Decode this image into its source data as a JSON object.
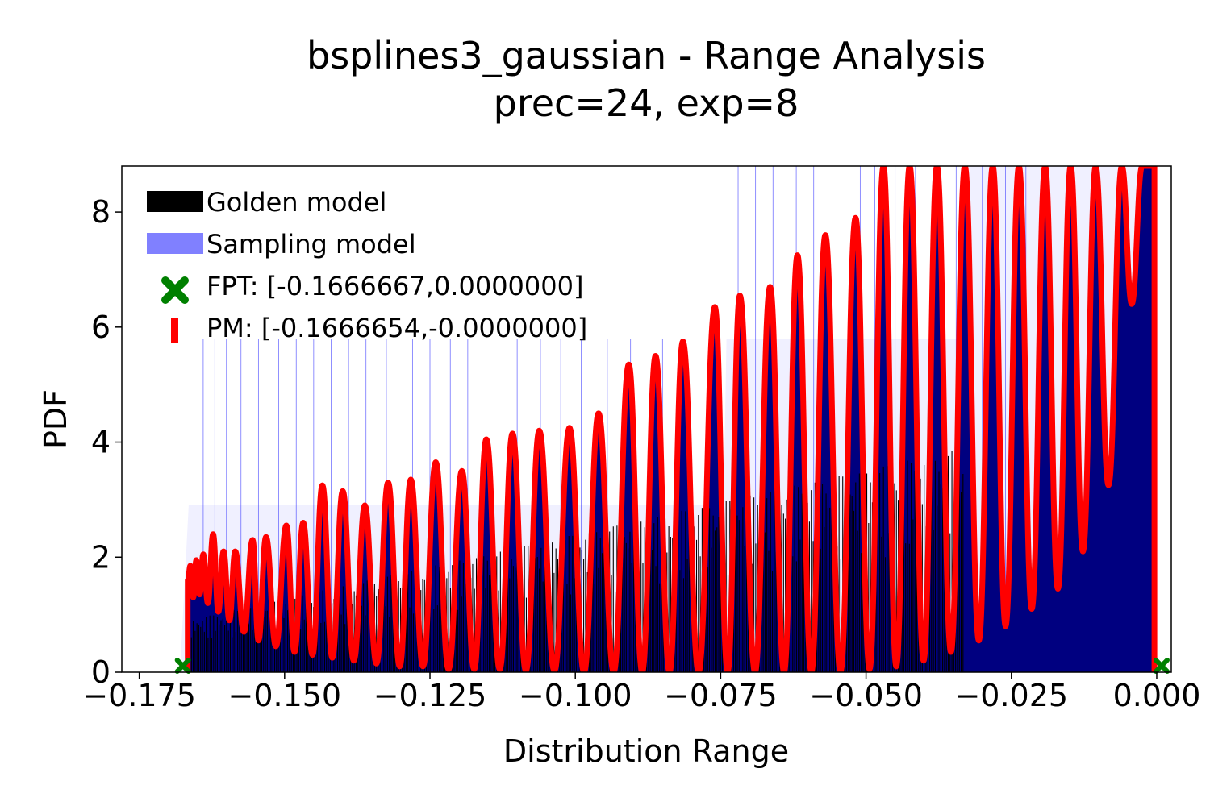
{
  "chart_data": {
    "type": "area",
    "title_line1": "bsplines3_gaussian - Range Analysis",
    "title_line2": "prec=24, exp=8",
    "xlabel": "Distribution Range",
    "ylabel": "PDF",
    "xlim": [
      -0.178,
      0.0025
    ],
    "ylim": [
      0,
      8.8
    ],
    "grid": false,
    "legend_placement": "top-left",
    "x_ticks": [
      -0.175,
      -0.15,
      -0.125,
      -0.1,
      -0.075,
      -0.05,
      -0.025,
      0.0
    ],
    "x_tick_labels": [
      "−0.175",
      "−0.150",
      "−0.125",
      "−0.100",
      "−0.075",
      "−0.050",
      "−0.025",
      "0.000"
    ],
    "y_ticks": [
      0,
      2,
      4,
      6,
      8
    ],
    "y_tick_labels": [
      "0",
      "2",
      "4",
      "6",
      "8"
    ],
    "legend": [
      {
        "label": "Golden model",
        "color": "#000000",
        "marker": "patch"
      },
      {
        "label": "Sampling model",
        "color": "#8080ff",
        "marker": "patch"
      },
      {
        "label": "FPT: [-0.1666667,0.0000000]",
        "color": "#008000",
        "marker": "x"
      },
      {
        "label": "PM: [-0.1666654,-0.0000000]",
        "color": "#ff0000",
        "marker": "line"
      }
    ],
    "colors": {
      "golden": "#000000",
      "sampling": "#0000ff",
      "fill": "#000080",
      "pm": "#ff0000",
      "fpt": "#008000"
    },
    "fpt_range": [
      -0.1666667,
      0.0
    ],
    "pm_range": [
      -0.1666654,
      -0.0
    ],
    "pm_peaks": [
      {
        "x": -0.1662,
        "y": 1.85
      },
      {
        "x": -0.1652,
        "y": 1.95
      },
      {
        "x": -0.164,
        "y": 2.05
      },
      {
        "x": -0.1623,
        "y": 2.4
      },
      {
        "x": -0.1605,
        "y": 2.1
      },
      {
        "x": -0.1585,
        "y": 2.1
      },
      {
        "x": -0.1555,
        "y": 2.3
      },
      {
        "x": -0.1532,
        "y": 2.35
      },
      {
        "x": -0.1497,
        "y": 2.55
      },
      {
        "x": -0.1468,
        "y": 2.6
      },
      {
        "x": -0.1435,
        "y": 3.25
      },
      {
        "x": -0.14,
        "y": 3.15
      },
      {
        "x": -0.1362,
        "y": 2.9
      },
      {
        "x": -0.1322,
        "y": 3.3
      },
      {
        "x": -0.1283,
        "y": 3.35
      },
      {
        "x": -0.124,
        "y": 3.65
      },
      {
        "x": -0.1195,
        "y": 3.5
      },
      {
        "x": -0.1153,
        "y": 4.05
      },
      {
        "x": -0.1108,
        "y": 4.15
      },
      {
        "x": -0.1062,
        "y": 4.2
      },
      {
        "x": -0.101,
        "y": 4.25
      },
      {
        "x": -0.096,
        "y": 4.5
      },
      {
        "x": -0.0908,
        "y": 5.35
      },
      {
        "x": -0.0862,
        "y": 5.5
      },
      {
        "x": -0.0815,
        "y": 5.75
      },
      {
        "x": -0.076,
        "y": 6.35
      },
      {
        "x": -0.0717,
        "y": 6.55
      },
      {
        "x": -0.0665,
        "y": 6.7
      },
      {
        "x": -0.0618,
        "y": 7.25
      },
      {
        "x": -0.057,
        "y": 7.6
      },
      {
        "x": -0.0518,
        "y": 7.9
      },
      {
        "x": -0.047,
        "y": 8.8
      },
      {
        "x": -0.0425,
        "y": 8.8
      },
      {
        "x": -0.0378,
        "y": 8.8
      },
      {
        "x": -0.033,
        "y": 8.8
      },
      {
        "x": -0.0282,
        "y": 8.8
      },
      {
        "x": -0.0237,
        "y": 8.8
      },
      {
        "x": -0.0192,
        "y": 8.8
      },
      {
        "x": -0.0148,
        "y": 8.8
      },
      {
        "x": -0.0105,
        "y": 8.8
      },
      {
        "x": -0.006,
        "y": 8.8
      },
      {
        "x": -0.0025,
        "y": 8.8
      }
    ],
    "pm_troughs": [
      {
        "x": -0.1657,
        "y": 1.3
      },
      {
        "x": -0.1646,
        "y": 1.35
      },
      {
        "x": -0.1632,
        "y": 1.2
      },
      {
        "x": -0.1614,
        "y": 1.05
      },
      {
        "x": -0.1595,
        "y": 0.9
      },
      {
        "x": -0.157,
        "y": 0.7
      },
      {
        "x": -0.1545,
        "y": 0.55
      },
      {
        "x": -0.1515,
        "y": 0.45
      },
      {
        "x": -0.1483,
        "y": 0.35
      },
      {
        "x": -0.1452,
        "y": 0.3
      },
      {
        "x": -0.1418,
        "y": 0.25
      },
      {
        "x": -0.1381,
        "y": 0.2
      },
      {
        "x": -0.1342,
        "y": 0.15
      },
      {
        "x": -0.1302,
        "y": 0.1
      },
      {
        "x": -0.1262,
        "y": 0.1
      },
      {
        "x": -0.1218,
        "y": 0.05
      },
      {
        "x": -0.1174,
        "y": 0.05
      },
      {
        "x": -0.113,
        "y": 0.05
      },
      {
        "x": -0.1085,
        "y": 0.02
      },
      {
        "x": -0.1036,
        "y": 0.02
      },
      {
        "x": -0.0985,
        "y": 0.0
      },
      {
        "x": -0.0934,
        "y": 0.0
      },
      {
        "x": -0.0885,
        "y": 0.0
      },
      {
        "x": -0.0838,
        "y": 0.0
      },
      {
        "x": -0.0788,
        "y": 0.0
      },
      {
        "x": -0.0738,
        "y": 0.0
      },
      {
        "x": -0.0691,
        "y": 0.0
      },
      {
        "x": -0.0641,
        "y": 0.0
      },
      {
        "x": -0.0594,
        "y": 0.0
      },
      {
        "x": -0.0544,
        "y": 0.0
      },
      {
        "x": -0.0494,
        "y": 0.05
      },
      {
        "x": -0.0448,
        "y": 0.1
      },
      {
        "x": -0.0401,
        "y": 0.2
      },
      {
        "x": -0.0354,
        "y": 0.35
      },
      {
        "x": -0.0306,
        "y": 0.55
      },
      {
        "x": -0.026,
        "y": 0.8
      },
      {
        "x": -0.0215,
        "y": 1.1
      },
      {
        "x": -0.017,
        "y": 1.45
      },
      {
        "x": -0.0127,
        "y": 2.1
      },
      {
        "x": -0.0083,
        "y": 3.25
      },
      {
        "x": -0.0043,
        "y": 6.4
      }
    ],
    "sampling_envelope": [
      {
        "x": -0.168,
        "y": 0.0
      },
      {
        "x": -0.1665,
        "y": 2.9
      },
      {
        "x": -0.12,
        "y": 2.9
      },
      {
        "x": -0.0745,
        "y": 2.9
      },
      {
        "x": -0.074,
        "y": 5.8
      },
      {
        "x": -0.033,
        "y": 5.8
      },
      {
        "x": -0.0325,
        "y": 8.8
      },
      {
        "x": 0.0,
        "y": 8.8
      }
    ],
    "sampling_spikes_x": [
      -0.164,
      -0.162,
      -0.16,
      -0.1575,
      -0.1545,
      -0.151,
      -0.148,
      -0.145,
      -0.142,
      -0.139,
      -0.136,
      -0.1325,
      -0.128,
      -0.125,
      -0.1215,
      -0.1185,
      -0.11,
      -0.106,
      -0.1025,
      -0.099,
      -0.0945,
      -0.0905,
      -0.085,
      -0.081,
      -0.076,
      -0.072,
      -0.069,
      -0.066,
      -0.062,
      -0.059,
      -0.055,
      -0.051,
      -0.0485,
      -0.045,
      -0.0415,
      -0.038,
      -0.0345,
      -0.03,
      -0.026,
      -0.0225
    ]
  }
}
